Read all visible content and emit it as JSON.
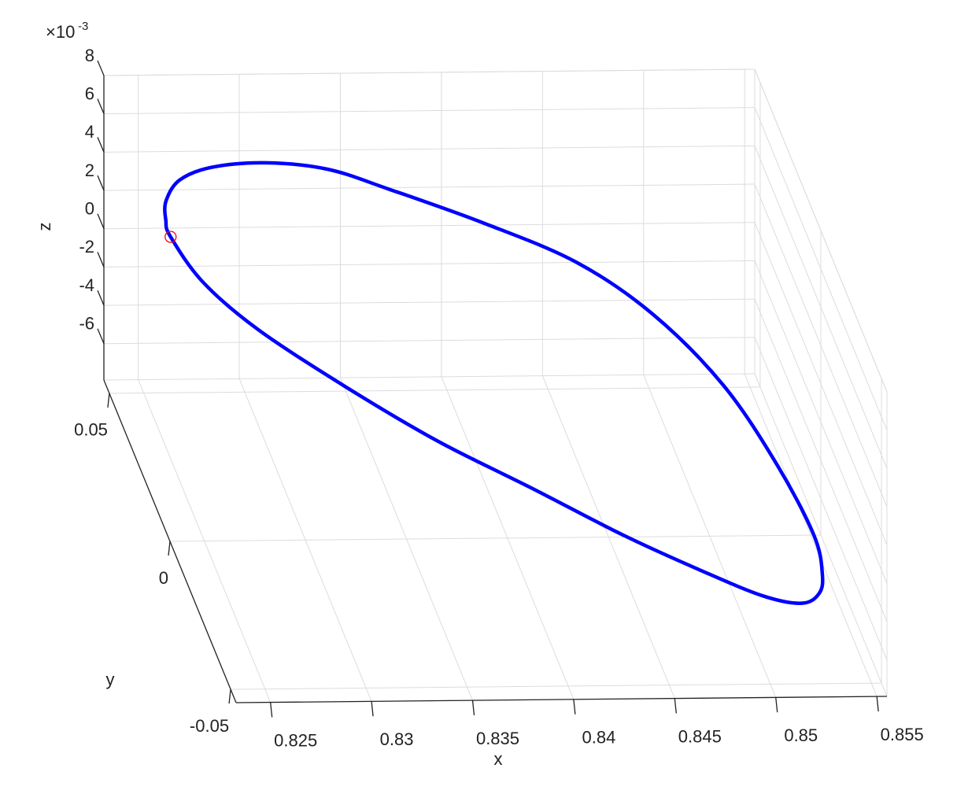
{
  "chart_data": {
    "type": "line3d",
    "xlabel": "x",
    "ylabel": "y",
    "zlabel": "z",
    "z_multiplier": {
      "base": "×10",
      "exponent": "-3"
    },
    "xlim": [
      0.8233,
      0.8555
    ],
    "ylim": [
      -0.0545,
      0.0545
    ],
    "zlim": [
      -0.0079,
      0.008
    ],
    "xticks": [
      0.825,
      0.83,
      0.835,
      0.84,
      0.845,
      0.85,
      0.855
    ],
    "yticks": [
      -0.05,
      0,
      0.05
    ],
    "zticks": [
      {
        "value": -0.006,
        "label": "-6"
      },
      {
        "value": -0.004,
        "label": "-4"
      },
      {
        "value": -0.002,
        "label": "-2"
      },
      {
        "value": 0,
        "label": "0"
      },
      {
        "value": 0.002,
        "label": "2"
      },
      {
        "value": 0.004,
        "label": "4"
      },
      {
        "value": 0.006,
        "label": "6"
      },
      {
        "value": 0.008,
        "label": "8"
      }
    ],
    "grid": true,
    "series": [
      {
        "color": "#0000ff",
        "x": [
          0.8236,
          0.8246,
          0.82685,
          0.8307,
          0.835,
          0.8395,
          0.8439,
          0.8477,
          0.8508,
          0.8529,
          0.8541,
          0.8547,
          0.855,
          0.8543,
          0.85275,
          0.8501,
          0.8467,
          0.8421,
          0.8373,
          0.8341,
          0.8306,
          0.8274,
          0.8253,
          0.8241,
          0.8237
        ],
        "y": [
          0.0045,
          -0.0058,
          -0.0139,
          -0.0205,
          -0.0258,
          -0.0276,
          -0.0303,
          -0.0308,
          -0.0306,
          -0.0274,
          -0.0217,
          -0.0146,
          -0.0027,
          0.016,
          0.0347,
          0.0484,
          0.0545,
          0.0545,
          0.0527,
          0.0503,
          0.0433,
          0.0342,
          0.0255,
          0.0166,
          0.0101
        ],
        "z": [
          0.0073,
          0.0065,
          0.00525,
          0.0033,
          0.0012,
          -0.001,
          -0.0031,
          -0.0049,
          -0.0063,
          -0.0072,
          -0.0076,
          -0.0077,
          -0.0075,
          -0.0067,
          -0.0054,
          -0.0038,
          -0.002,
          0.0001,
          0.0022,
          0.00365,
          0.0051,
          0.0063,
          0.007,
          0.0073,
          0.0073
        ]
      }
    ],
    "start_marker": {
      "x": 0.8236,
      "y": 0.0045,
      "z": 0.0073,
      "color": "#ff0000"
    }
  }
}
